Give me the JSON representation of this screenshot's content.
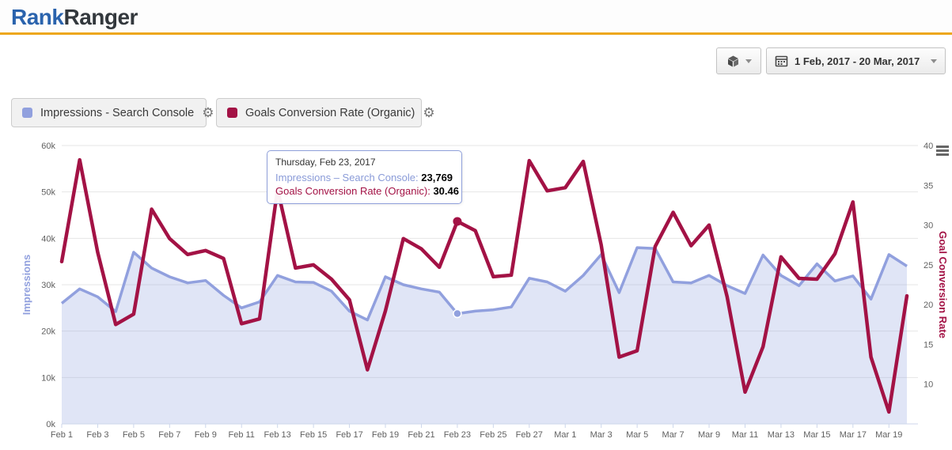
{
  "header": {
    "logo_primary": "Rank",
    "logo_secondary": "Ranger"
  },
  "toolbar": {
    "package_button": {
      "icon": "cube-icon"
    },
    "date_range_button": {
      "icon": "calendar-icon",
      "label": "1 Feb, 2017 - 20 Mar, 2017"
    }
  },
  "legend": [
    {
      "label": "Impressions - Search Console",
      "color": "#91a0de",
      "gear_icon": "⚙"
    },
    {
      "label": "Goals Conversion Rate (Organic)",
      "color": "#a31245",
      "gear_icon": "⚙"
    }
  ],
  "tooltip": {
    "title": "Thursday, Feb 23, 2017",
    "rows": [
      {
        "name": "Impressions – Search Console",
        "value": "23,769"
      },
      {
        "name": "Goals Conversion Rate (Organic)",
        "value": "30.46"
      }
    ]
  },
  "chart_data": {
    "type": "area",
    "subtype": "dual-axis area + line, horizontal grid only, legend as buttons top-left",
    "categories": [
      "Feb 1",
      "Feb 2",
      "Feb 3",
      "Feb 4",
      "Feb 5",
      "Feb 6",
      "Feb 7",
      "Feb 8",
      "Feb 9",
      "Feb 10",
      "Feb 11",
      "Feb 12",
      "Feb 13",
      "Feb 14",
      "Feb 15",
      "Feb 16",
      "Feb 17",
      "Feb 18",
      "Feb 19",
      "Feb 20",
      "Feb 21",
      "Feb 22",
      "Feb 23",
      "Feb 24",
      "Feb 25",
      "Feb 26",
      "Feb 27",
      "Feb 28",
      "Mar 1",
      "Mar 2",
      "Mar 3",
      "Mar 4",
      "Mar 5",
      "Mar 6",
      "Mar 7",
      "Mar 8",
      "Mar 9",
      "Mar 10",
      "Mar 11",
      "Mar 12",
      "Mar 13",
      "Mar 14",
      "Mar 15",
      "Mar 16",
      "Mar 17",
      "Mar 18",
      "Mar 19",
      "Mar 20"
    ],
    "x_label_every": 2,
    "series": [
      {
        "name": "Impressions - Search Console",
        "type": "area",
        "axis": "left",
        "color": "#91a0de",
        "fill": "rgba(145,160,222,0.28)",
        "values": [
          26000,
          29100,
          27400,
          24200,
          37000,
          33600,
          31700,
          30400,
          30900,
          27700,
          25000,
          26300,
          32000,
          30600,
          30500,
          28600,
          24300,
          22400,
          31700,
          30000,
          29100,
          28400,
          23769,
          24300,
          24600,
          25200,
          31400,
          30600,
          28600,
          32000,
          36500,
          28300,
          38000,
          37800,
          30600,
          30400,
          32000,
          29800,
          28100,
          36400,
          32000,
          29800,
          34500,
          30800,
          31900,
          26900,
          36500,
          34000
        ]
      },
      {
        "name": "Goals Conversion Rate (Organic)",
        "type": "line",
        "axis": "right",
        "color": "#a31245",
        "values": [
          25.4,
          38.2,
          26.6,
          17.5,
          18.8,
          32.0,
          28.3,
          26.3,
          26.8,
          25.8,
          17.6,
          18.2,
          34.5,
          24.6,
          25.0,
          23.2,
          20.6,
          11.8,
          19.2,
          28.3,
          27.0,
          24.7,
          30.46,
          29.3,
          23.5,
          23.7,
          38.1,
          34.3,
          34.7,
          38.0,
          27.5,
          13.4,
          14.2,
          27.3,
          31.6,
          27.4,
          30.0,
          21.0,
          9.0,
          14.7,
          26.0,
          23.3,
          23.2,
          26.4,
          32.9,
          13.4,
          6.5,
          21.1
        ]
      }
    ],
    "left_axis": {
      "title": "Impressions",
      "min": 0,
      "max": 60000,
      "tick_labels": [
        "0k",
        "10k",
        "20k",
        "30k",
        "40k",
        "50k",
        "60k"
      ]
    },
    "right_axis": {
      "title": "Goal Conversion Rate",
      "min": 5,
      "max": 40,
      "tick_values": [
        10,
        15,
        20,
        25,
        30,
        35,
        40
      ]
    },
    "marked_point": {
      "index": 22,
      "category": "Feb 23",
      "impressions": 23769,
      "conversion_rate": 30.46
    },
    "grid": "horizontal-only",
    "axis_line_color": "#ccd6eb",
    "grid_color": "#e6e6e6"
  }
}
